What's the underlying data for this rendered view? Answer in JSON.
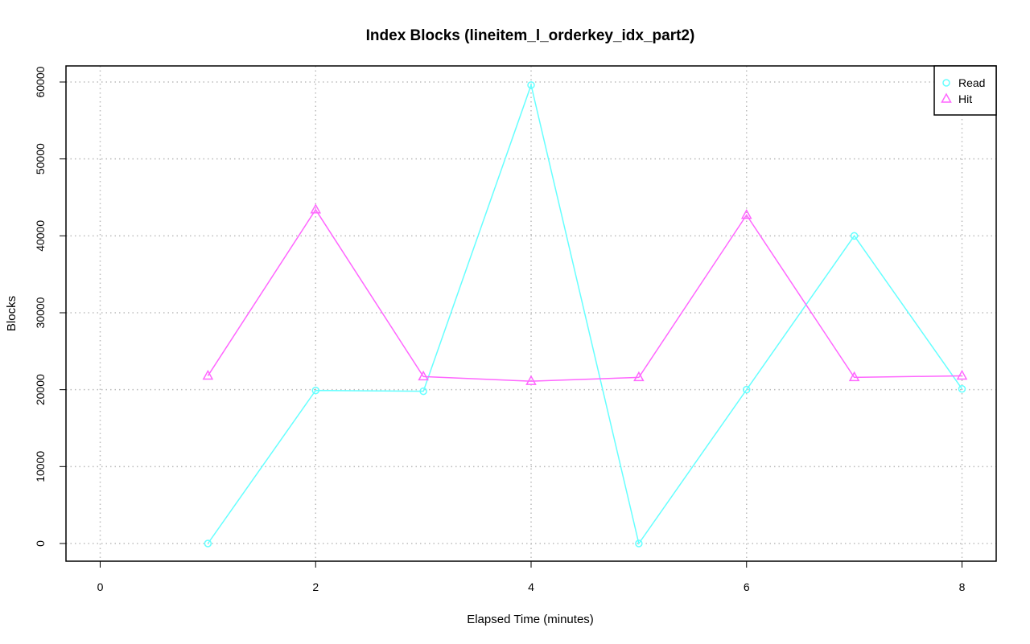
{
  "chart_data": {
    "type": "line",
    "title": "Index Blocks (lineitem_l_orderkey_idx_part2)",
    "xlabel": "Elapsed Time (minutes)",
    "ylabel": "Blocks",
    "xlim": [
      0,
      8
    ],
    "ylim": [
      0,
      60000
    ],
    "x_ticks": [
      0,
      2,
      4,
      6,
      8
    ],
    "y_ticks": [
      0,
      10000,
      20000,
      30000,
      40000,
      50000,
      60000
    ],
    "grid": true,
    "legend_position": "top-right",
    "x": [
      1,
      2,
      3,
      4,
      5,
      6,
      7,
      8
    ],
    "series": [
      {
        "name": "Read",
        "color": "#66ffff",
        "marker": "circle",
        "values": [
          0,
          19900,
          19800,
          59600,
          0,
          20000,
          40000,
          20100
        ]
      },
      {
        "name": "Hit",
        "color": "#ff66ff",
        "marker": "triangle",
        "values": [
          21800,
          43400,
          21700,
          21100,
          21600,
          42700,
          21600,
          21800
        ]
      }
    ]
  }
}
